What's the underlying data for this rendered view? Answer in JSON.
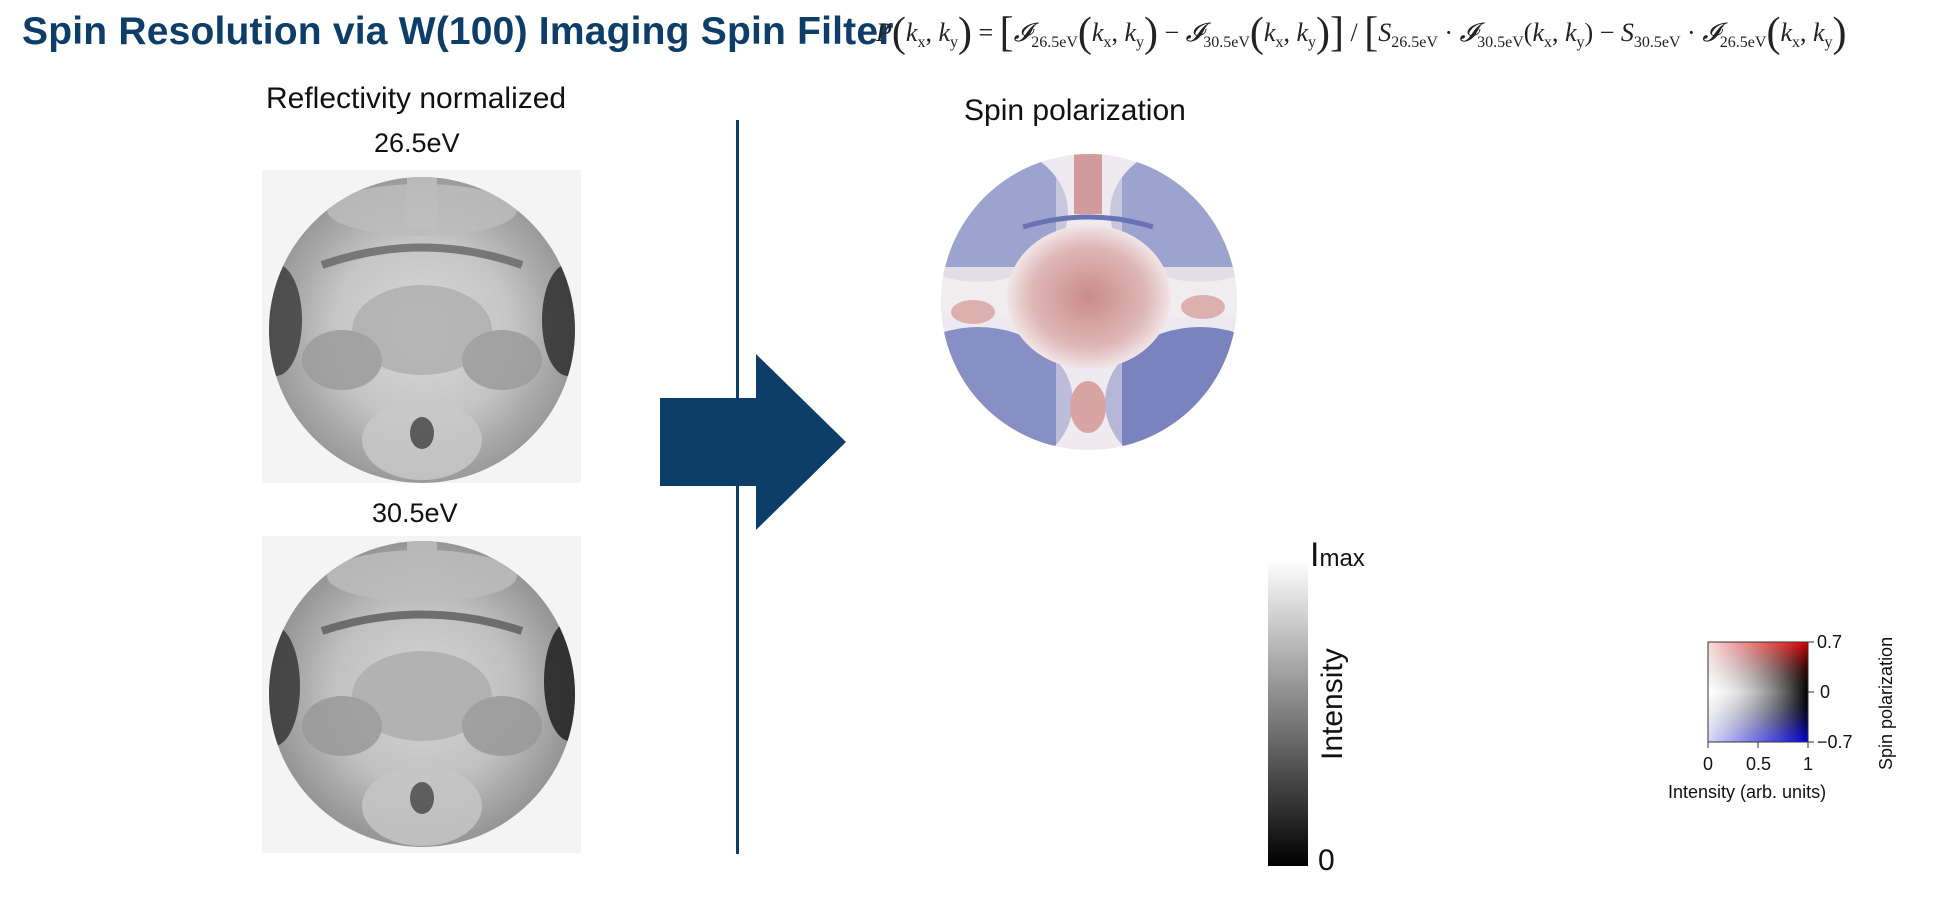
{
  "title": "Spin Resolution via W(100) Imaging Spin Filter",
  "formula": {
    "lhs": "P",
    "vars": "k",
    "equals": "=",
    "term_sub_a": "26.5eV",
    "term_sub_b": "30.5eV",
    "s_sub_a": "26.5eV",
    "s_sub_b": "30.5eV"
  },
  "left": {
    "heading": "Reflectivity normalized",
    "image_top_label": "26.5eV",
    "image_bottom_label": "30.5eV"
  },
  "right": {
    "heading": "Spin polarization"
  },
  "intensity_bar": {
    "max_label_main": "I",
    "max_label_sub": "max",
    "axis_label": "Intensity",
    "min_label": "0"
  },
  "colormap_2d": {
    "y_ticks": [
      "0.7",
      "0",
      "−0.7"
    ],
    "x_ticks": [
      "0",
      "0.5",
      "1"
    ],
    "x_label": "Intensity (arb. units)",
    "y_label": "Spin polarization",
    "colors": {
      "positive": "#e00000",
      "negative": "#0000e0",
      "neutral_dark": "#000000",
      "neutral_light": "#ffffff"
    }
  },
  "colors": {
    "accent": "#0d3e6a"
  }
}
